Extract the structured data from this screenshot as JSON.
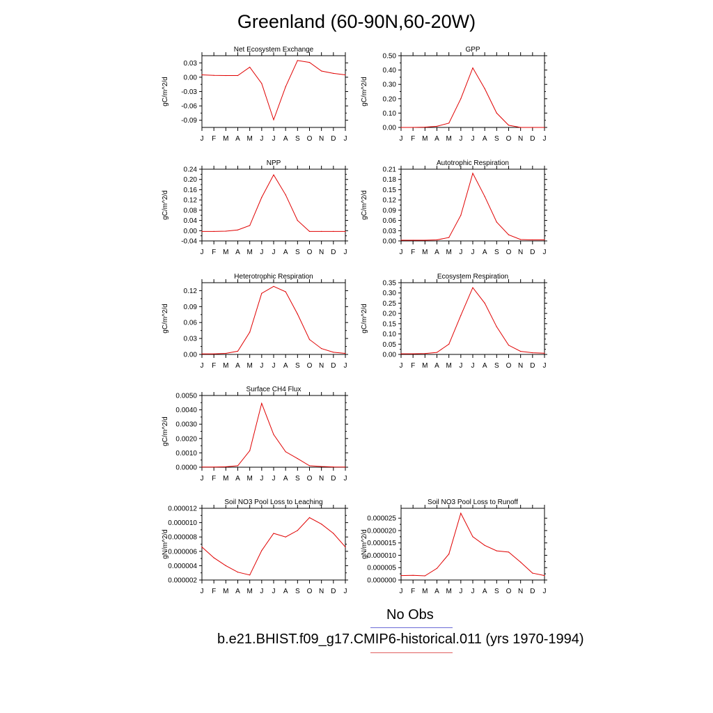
{
  "title": "Greenland (60-90N,60-20W)",
  "legend": {
    "entries": [
      {
        "label": "No Obs",
        "color": "#6b6bd6"
      },
      {
        "label": "b.e21.BHIST.f09_g17.CMIP6-historical.011 (yrs 1970-1994)",
        "color": "#e06060"
      }
    ]
  },
  "series_color": "#e00000",
  "chart_data": [
    {
      "type": "line",
      "title": "Net Ecosystem Exchange",
      "ylabel": "gC/m^2/d",
      "categories": [
        "J",
        "F",
        "M",
        "A",
        "M",
        "J",
        "J",
        "A",
        "S",
        "O",
        "N",
        "D",
        "J"
      ],
      "values": [
        0.005,
        0.004,
        0.0035,
        0.0035,
        0.021,
        -0.013,
        -0.089,
        -0.02,
        0.035,
        0.031,
        0.013,
        0.008,
        0.005
      ],
      "ylim": [
        -0.105,
        0.045
      ],
      "yticks": [
        -0.09,
        -0.06,
        -0.03,
        0.0,
        0.03
      ],
      "ytick_labels": [
        "-0.09",
        "-0.06",
        "-0.03",
        "0.00",
        "0.03"
      ]
    },
    {
      "type": "line",
      "title": "GPP",
      "ylabel": "gC/m^2/d",
      "categories": [
        "J",
        "F",
        "M",
        "A",
        "M",
        "J",
        "J",
        "A",
        "S",
        "O",
        "N",
        "D",
        "J"
      ],
      "values": [
        0.0,
        0.0,
        0.002,
        0.008,
        0.03,
        0.2,
        0.415,
        0.27,
        0.1,
        0.015,
        0.0,
        0.0,
        0.0
      ],
      "ylim": [
        0,
        0.5
      ],
      "yticks": [
        0.0,
        0.1,
        0.2,
        0.3,
        0.4,
        0.5
      ],
      "ytick_labels": [
        "0.00",
        "0.10",
        "0.20",
        "0.30",
        "0.40",
        "0.50"
      ]
    },
    {
      "type": "line",
      "title": "NPP",
      "ylabel": "gC/m^2/d",
      "categories": [
        "J",
        "F",
        "M",
        "A",
        "M",
        "J",
        "J",
        "A",
        "S",
        "O",
        "N",
        "D",
        "J"
      ],
      "values": [
        -0.003,
        -0.003,
        -0.002,
        0.003,
        0.02,
        0.13,
        0.218,
        0.14,
        0.04,
        -0.003,
        -0.003,
        -0.003,
        -0.003
      ],
      "ylim": [
        -0.04,
        0.24
      ],
      "yticks": [
        -0.04,
        0.0,
        0.04,
        0.08,
        0.12,
        0.16,
        0.2,
        0.24
      ],
      "ytick_labels": [
        "-0.04",
        "0.00",
        "0.04",
        "0.08",
        "0.12",
        "0.16",
        "0.20",
        "0.24"
      ]
    },
    {
      "type": "line",
      "title": "Autotrophic Respiration",
      "ylabel": "gC/m^2/d",
      "categories": [
        "J",
        "F",
        "M",
        "A",
        "M",
        "J",
        "J",
        "A",
        "S",
        "O",
        "N",
        "D",
        "J"
      ],
      "values": [
        0.002,
        0.002,
        0.002,
        0.003,
        0.01,
        0.075,
        0.198,
        0.13,
        0.055,
        0.018,
        0.004,
        0.003,
        0.003
      ],
      "ylim": [
        0,
        0.21
      ],
      "yticks": [
        0.0,
        0.03,
        0.06,
        0.09,
        0.12,
        0.15,
        0.18,
        0.21
      ],
      "ytick_labels": [
        "0.00",
        "0.03",
        "0.06",
        "0.09",
        "0.12",
        "0.15",
        "0.18",
        "0.21"
      ]
    },
    {
      "type": "line",
      "title": "Heterotrophic Respiration",
      "ylabel": "gC/m^2/d",
      "categories": [
        "J",
        "F",
        "M",
        "A",
        "M",
        "J",
        "J",
        "A",
        "S",
        "O",
        "N",
        "D",
        "J"
      ],
      "values": [
        0.001,
        0.001,
        0.002,
        0.006,
        0.042,
        0.115,
        0.128,
        0.118,
        0.076,
        0.028,
        0.011,
        0.004,
        0.002
      ],
      "ylim": [
        0,
        0.135
      ],
      "yticks": [
        0.0,
        0.03,
        0.06,
        0.09,
        0.12
      ],
      "ytick_labels": [
        "0.00",
        "0.03",
        "0.06",
        "0.09",
        "0.12"
      ]
    },
    {
      "type": "line",
      "title": "Ecosystem Respiration",
      "ylabel": "gC/m^2/d",
      "categories": [
        "J",
        "F",
        "M",
        "A",
        "M",
        "J",
        "J",
        "A",
        "S",
        "O",
        "N",
        "D",
        "J"
      ],
      "values": [
        0.003,
        0.003,
        0.004,
        0.01,
        0.05,
        0.19,
        0.326,
        0.25,
        0.135,
        0.045,
        0.015,
        0.008,
        0.006
      ],
      "ylim": [
        0,
        0.35
      ],
      "yticks": [
        0.0,
        0.05,
        0.1,
        0.15,
        0.2,
        0.25,
        0.3,
        0.35
      ],
      "ytick_labels": [
        "0.00",
        "0.05",
        "0.10",
        "0.15",
        "0.20",
        "0.25",
        "0.30",
        "0.35"
      ]
    },
    {
      "type": "line",
      "title": "Surface CH4 Flux",
      "ylabel": "gC/m^2/d",
      "categories": [
        "J",
        "F",
        "M",
        "A",
        "M",
        "J",
        "J",
        "A",
        "S",
        "O",
        "N",
        "D",
        "J"
      ],
      "values": [
        1e-05,
        1e-05,
        3e-05,
        0.0001,
        0.00115,
        0.00445,
        0.00228,
        0.00108,
        0.0006,
        0.0001,
        5e-05,
        2e-05,
        1e-05
      ],
      "ylim": [
        0,
        0.005
      ],
      "yticks": [
        0.0,
        0.001,
        0.002,
        0.003,
        0.004,
        0.005
      ],
      "ytick_labels": [
        "0.0000",
        "0.0010",
        "0.0020",
        "0.0030",
        "0.0040",
        "0.0050"
      ]
    },
    {
      "type": "line",
      "title": "Soil NO3 Pool Loss to Leaching",
      "ylabel": "gN/m^2/d",
      "categories": [
        "J",
        "F",
        "M",
        "A",
        "M",
        "J",
        "J",
        "A",
        "S",
        "O",
        "N",
        "D",
        "J"
      ],
      "values": [
        6.6e-06,
        5.1e-06,
        4e-06,
        3.1e-06,
        2.7e-06,
        6.1e-06,
        8.5e-06,
        8e-06,
        8.9e-06,
        1.07e-05,
        9.8e-06,
        8.5e-06,
        6.6e-06
      ],
      "ylim": [
        2e-06,
        1.2e-05
      ],
      "yticks": [
        2e-06,
        4e-06,
        6e-06,
        8e-06,
        1e-05,
        1.2e-05
      ],
      "ytick_labels": [
        "0.000002",
        "0.000004",
        "0.000006",
        "0.000008",
        "0.000010",
        "0.000012"
      ]
    },
    {
      "type": "line",
      "title": "Soil NO3 Pool Loss to Runoff",
      "ylabel": "gN/m^2/d",
      "categories": [
        "J",
        "F",
        "M",
        "A",
        "M",
        "J",
        "J",
        "A",
        "S",
        "O",
        "N",
        "D",
        "J"
      ],
      "values": [
        1.8e-06,
        1.9e-06,
        1.7e-06,
        4.7e-06,
        1.05e-05,
        2.7e-05,
        1.75e-05,
        1.4e-05,
        1.18e-05,
        1.13e-05,
        7.2e-06,
        2.8e-06,
        1.8e-06
      ],
      "ylim": [
        0,
        2.9e-05
      ],
      "yticks": [
        0.0,
        5e-06,
        1e-05,
        1.5e-05,
        2e-05,
        2.5e-05
      ],
      "ytick_labels": [
        "0.000000",
        "0.000005",
        "0.000010",
        "0.000015",
        "0.000020",
        "0.000025"
      ]
    }
  ]
}
